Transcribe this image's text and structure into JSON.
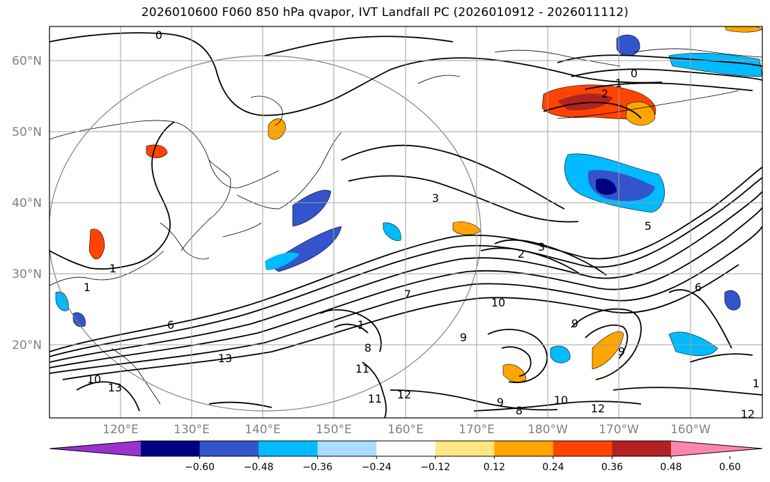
{
  "title": "2026010600 F060 850 hPa qvapor, IVT Landfall PC (2026010912 - 2026011112)",
  "map": {
    "lat_labels": [
      "60°N",
      "50°N",
      "40°N",
      "30°N",
      "20°N"
    ],
    "lon_labels": [
      "120°E",
      "130°E",
      "140°E",
      "150°E",
      "160°E",
      "170°E",
      "180°W",
      "170°W",
      "160°W"
    ],
    "contour_labels": [
      "0",
      "0",
      "1",
      "2",
      "3",
      "2",
      "3",
      "1",
      "1",
      "6",
      "10",
      "9",
      "9",
      "7",
      "12",
      "10",
      "8",
      "12",
      "13",
      "13",
      "11",
      "11",
      "9",
      "1",
      "12",
      "5",
      "6",
      "10",
      "8",
      "9",
      "1"
    ]
  },
  "colorbar": {
    "labels": [
      "−0.60",
      "−0.48",
      "−0.36",
      "−0.24",
      "−0.12",
      "0.12",
      "0.24",
      "0.36",
      "0.48",
      "0.60"
    ],
    "colors": [
      "#9933cc",
      "#000080",
      "#3355cc",
      "#00bbff",
      "#aaddff",
      "#ffffff",
      "#ffe680",
      "#ffa500",
      "#ff4400",
      "#b22222",
      "#ff88aa"
    ]
  }
}
